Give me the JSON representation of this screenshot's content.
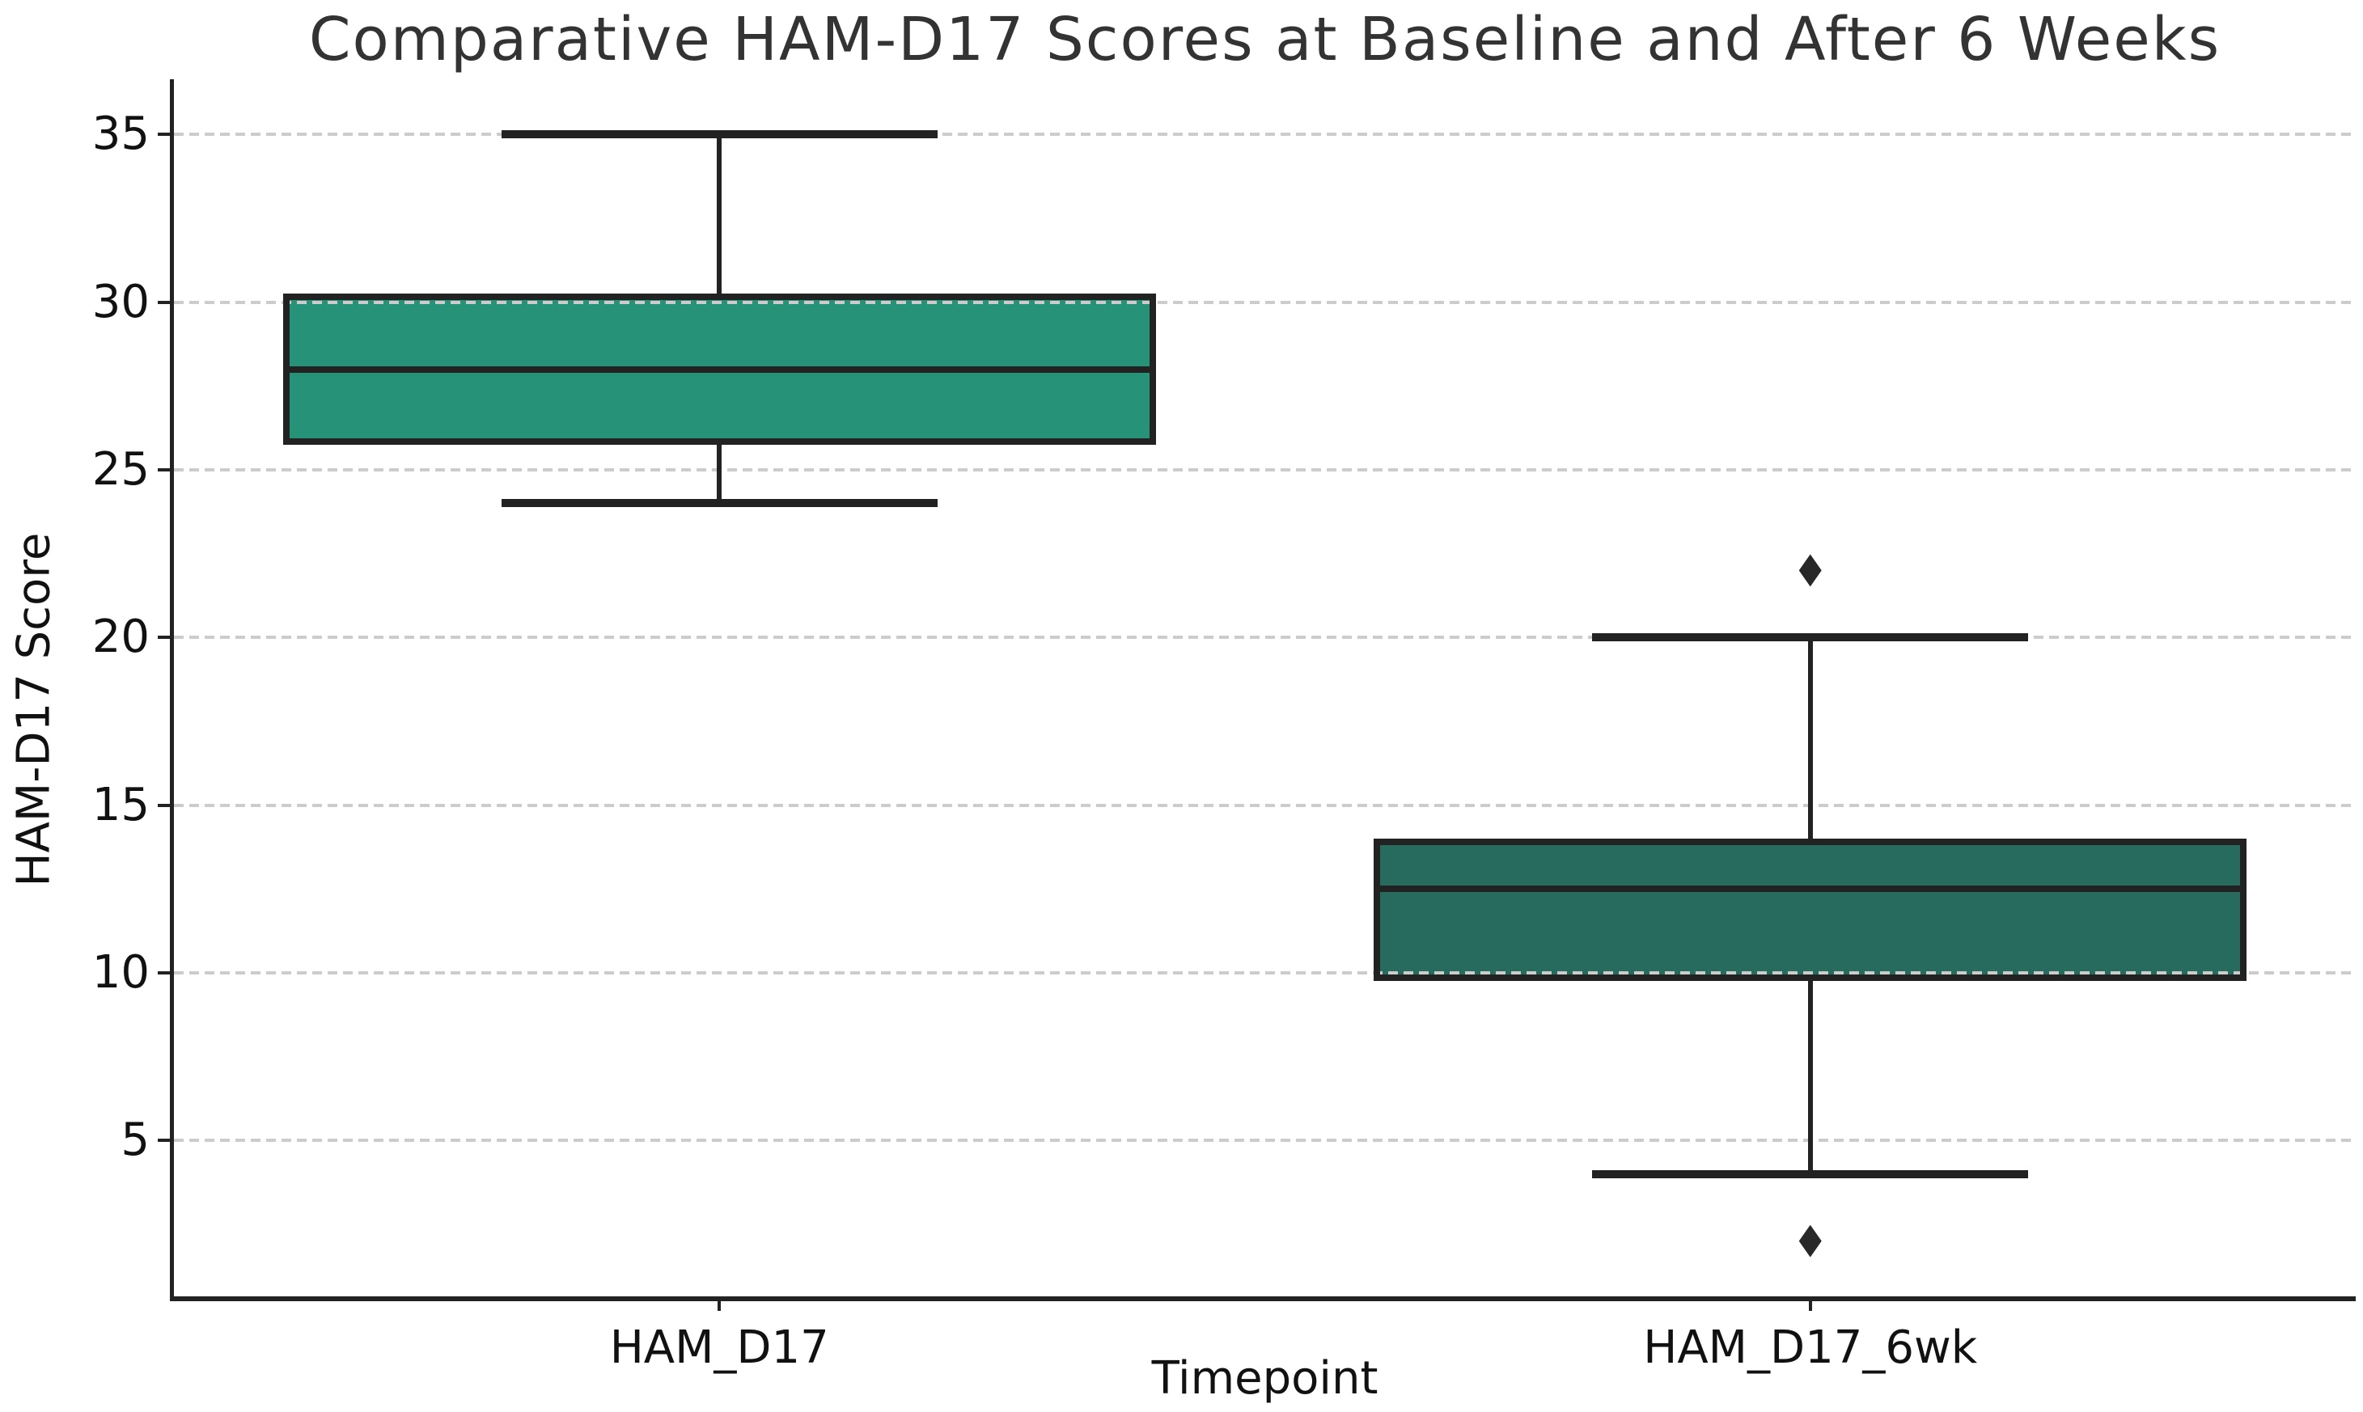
{
  "figure": {
    "background": "#ffffff"
  },
  "chart_data": {
    "type": "box",
    "title": "Comparative HAM-D17 Scores at Baseline and After 6 Weeks",
    "xlabel": "Timepoint",
    "ylabel": "HAM-D17 Score",
    "categories": [
      "HAM_D17",
      "HAM_D17_6wk"
    ],
    "yticks": [
      5,
      10,
      15,
      20,
      25,
      30,
      35
    ],
    "ylim": [
      0.35,
      36.65
    ],
    "xlim": [
      -0.5,
      1.5
    ],
    "grid": {
      "axis": "y",
      "style": "dashed",
      "color": "#cccccc"
    },
    "legend": null,
    "box_width_fraction": 0.8,
    "cap_width_fraction": 0.4,
    "series": [
      {
        "name": "HAM_D17",
        "whisker_low": 24,
        "q1": 25.75,
        "median": 28,
        "q3": 30.25,
        "whisker_high": 35,
        "outliers": [],
        "fill_color": "#269378"
      },
      {
        "name": "HAM_D17_6wk",
        "whisker_low": 4,
        "q1": 9.75,
        "median": 12.5,
        "q3": 14,
        "whisker_high": 20,
        "outliers": [
          22,
          2
        ],
        "fill_color": "#266b5e"
      }
    ],
    "colors": {
      "edge": "#222222",
      "outlier": "#282828",
      "gridline": "#cccccc",
      "spine": "#222222",
      "title": "#333333",
      "text": "#111111"
    }
  }
}
